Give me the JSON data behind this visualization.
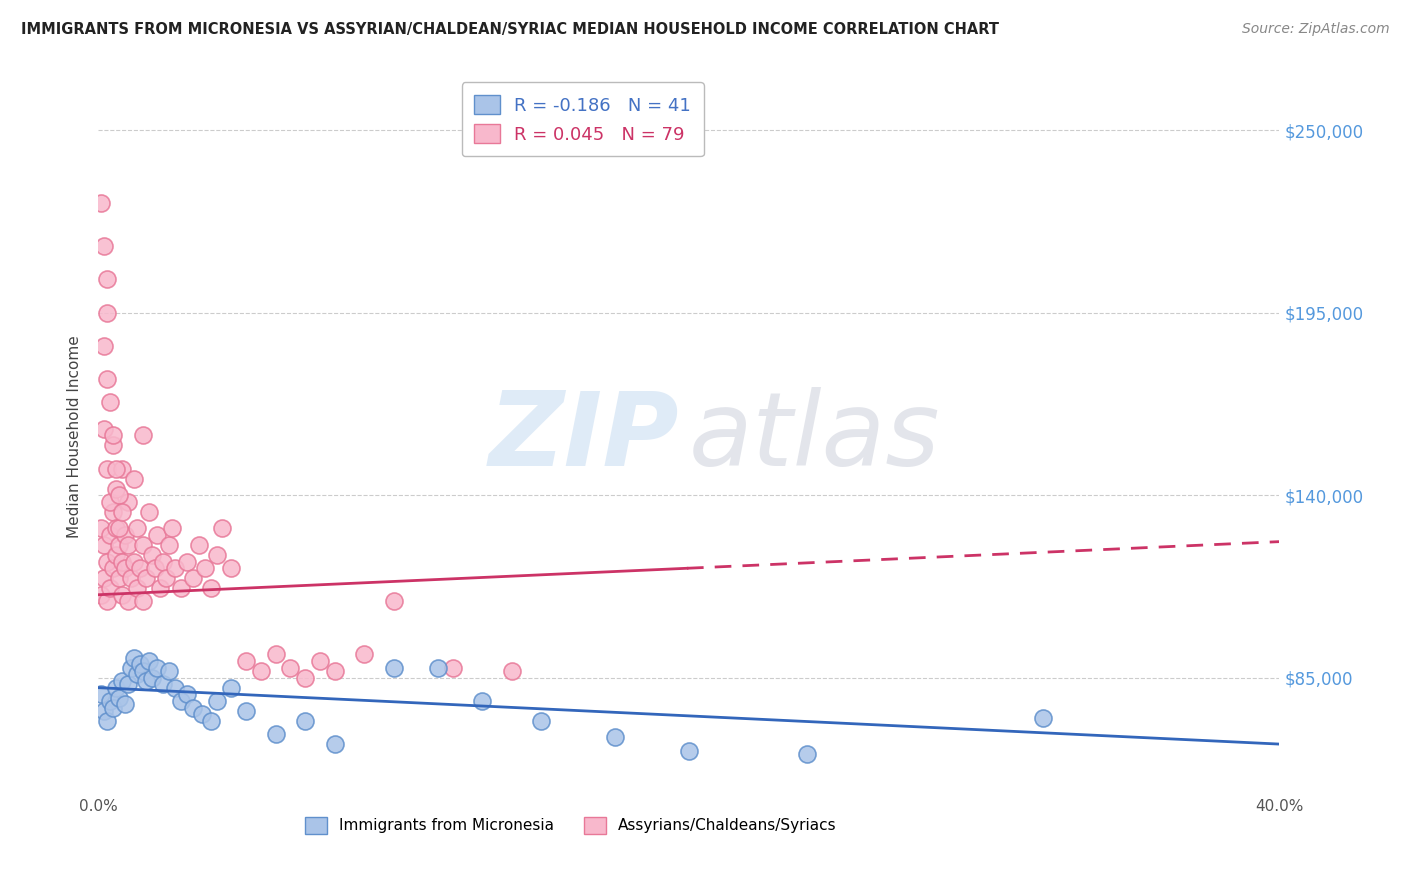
{
  "title": "IMMIGRANTS FROM MICRONESIA VS ASSYRIAN/CHALDEAN/SYRIAC MEDIAN HOUSEHOLD INCOME CORRELATION CHART",
  "source": "Source: ZipAtlas.com",
  "ylabel": "Median Household Income",
  "xlim": [
    0.0,
    0.4
  ],
  "ylim": [
    50000,
    265000
  ],
  "yticks": [
    85000,
    140000,
    195000,
    250000
  ],
  "ytick_labels": [
    "$85,000",
    "$140,000",
    "$195,000",
    "$250,000"
  ],
  "xtick_positions": [
    0.0,
    0.05,
    0.1,
    0.15,
    0.2,
    0.25,
    0.3,
    0.35,
    0.4
  ],
  "xtick_labels": [
    "0.0%",
    "",
    "",
    "",
    "",
    "",
    "",
    "",
    "40.0%"
  ],
  "blue_R": -0.186,
  "blue_N": 41,
  "pink_R": 0.045,
  "pink_N": 79,
  "blue_fill": "#aac4e8",
  "blue_edge": "#6090cc",
  "pink_fill": "#f8b8cc",
  "pink_edge": "#e87898",
  "trend_blue": "#3366bb",
  "trend_pink": "#cc3366",
  "blue_scatter_x": [
    0.001,
    0.002,
    0.003,
    0.004,
    0.005,
    0.006,
    0.007,
    0.008,
    0.009,
    0.01,
    0.011,
    0.012,
    0.013,
    0.014,
    0.015,
    0.016,
    0.017,
    0.018,
    0.02,
    0.022,
    0.024,
    0.026,
    0.028,
    0.03,
    0.032,
    0.035,
    0.038,
    0.04,
    0.045,
    0.05,
    0.06,
    0.07,
    0.08,
    0.1,
    0.115,
    0.13,
    0.15,
    0.175,
    0.2,
    0.24,
    0.32
  ],
  "blue_scatter_y": [
    80000,
    75000,
    72000,
    78000,
    76000,
    82000,
    79000,
    84000,
    77000,
    83000,
    88000,
    91000,
    86000,
    89000,
    87000,
    84000,
    90000,
    85000,
    88000,
    83000,
    87000,
    82000,
    78000,
    80000,
    76000,
    74000,
    72000,
    78000,
    82000,
    75000,
    68000,
    72000,
    65000,
    88000,
    88000,
    78000,
    72000,
    67000,
    63000,
    62000,
    73000
  ],
  "pink_scatter_x": [
    0.001,
    0.001,
    0.002,
    0.002,
    0.003,
    0.003,
    0.004,
    0.004,
    0.005,
    0.005,
    0.006,
    0.006,
    0.007,
    0.007,
    0.008,
    0.008,
    0.009,
    0.009,
    0.01,
    0.01,
    0.011,
    0.012,
    0.013,
    0.013,
    0.014,
    0.015,
    0.015,
    0.016,
    0.017,
    0.018,
    0.019,
    0.02,
    0.021,
    0.022,
    0.023,
    0.024,
    0.025,
    0.026,
    0.028,
    0.03,
    0.032,
    0.034,
    0.036,
    0.038,
    0.04,
    0.042,
    0.045,
    0.05,
    0.055,
    0.06,
    0.065,
    0.07,
    0.075,
    0.08,
    0.09,
    0.1,
    0.12,
    0.14,
    0.002,
    0.003,
    0.004,
    0.005,
    0.006,
    0.007,
    0.008,
    0.01,
    0.012,
    0.015,
    0.002,
    0.003,
    0.001,
    0.002,
    0.003,
    0.003,
    0.004,
    0.005,
    0.006,
    0.007,
    0.008
  ],
  "pink_scatter_y": [
    110000,
    130000,
    115000,
    125000,
    108000,
    120000,
    112000,
    128000,
    118000,
    135000,
    122000,
    130000,
    115000,
    125000,
    110000,
    120000,
    128000,
    118000,
    108000,
    125000,
    115000,
    120000,
    112000,
    130000,
    118000,
    108000,
    125000,
    115000,
    135000,
    122000,
    118000,
    128000,
    112000,
    120000,
    115000,
    125000,
    130000,
    118000,
    112000,
    120000,
    115000,
    125000,
    118000,
    112000,
    122000,
    130000,
    118000,
    90000,
    87000,
    92000,
    88000,
    85000,
    90000,
    87000,
    92000,
    108000,
    88000,
    87000,
    160000,
    148000,
    138000,
    155000,
    142000,
    130000,
    148000,
    138000,
    145000,
    158000,
    185000,
    175000,
    228000,
    215000,
    205000,
    195000,
    168000,
    158000,
    148000,
    140000,
    135000
  ]
}
